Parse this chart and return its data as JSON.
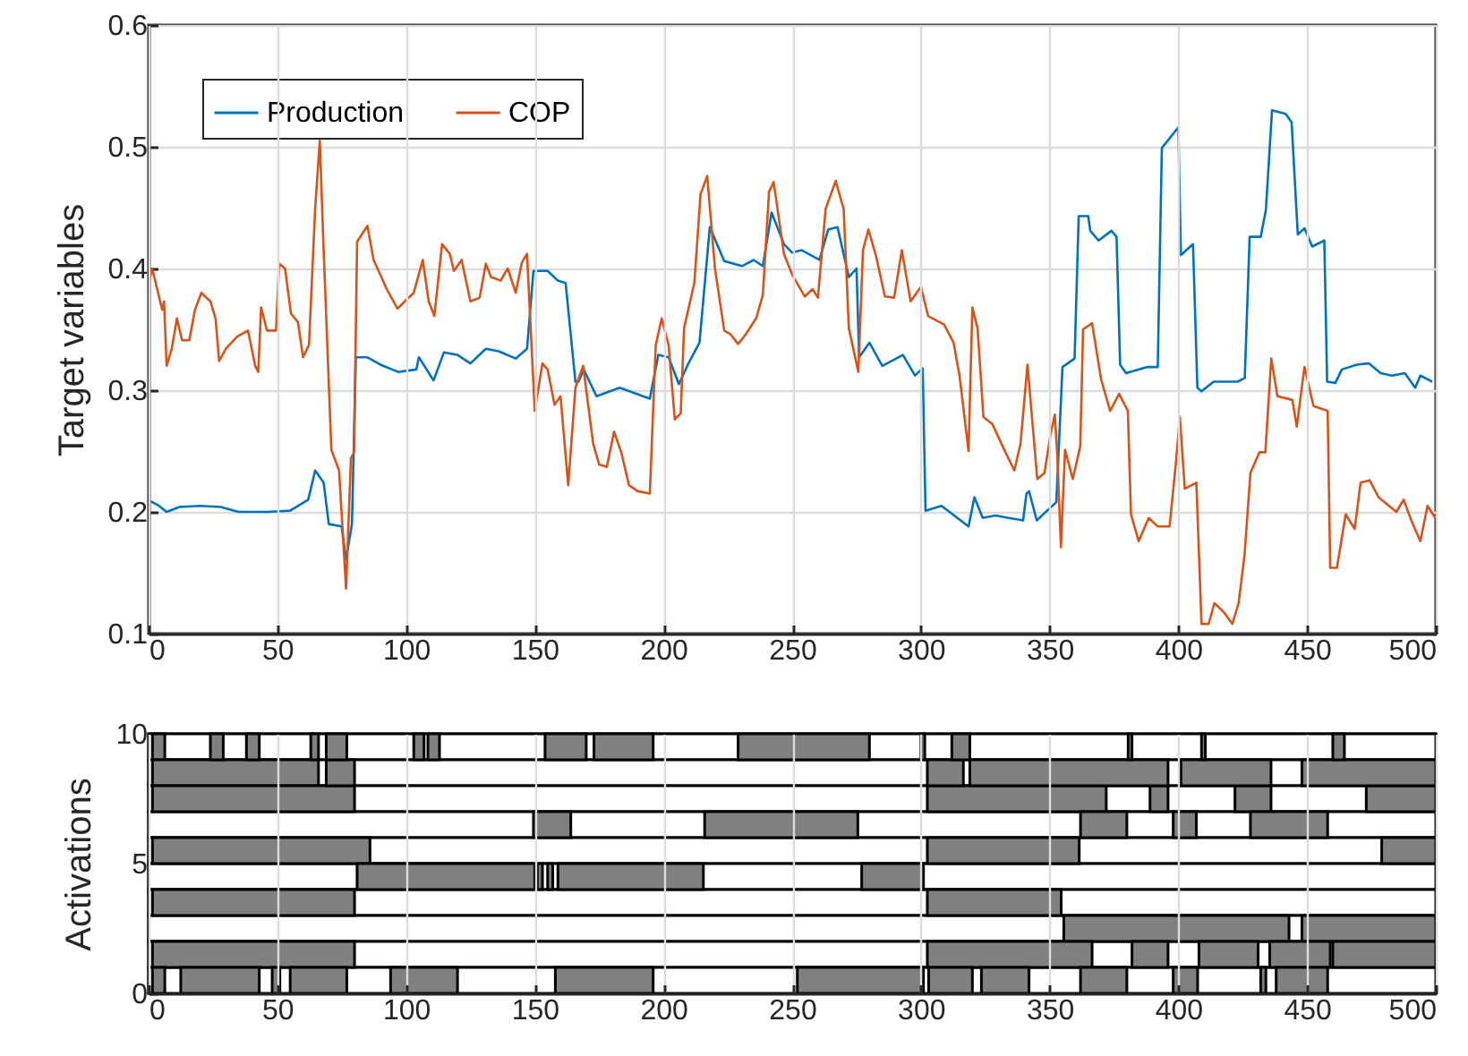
{
  "chart_data": [
    {
      "type": "line",
      "ylabel": "Target variables",
      "xlim": [
        0,
        500
      ],
      "xticks": [
        0,
        50,
        100,
        150,
        200,
        250,
        300,
        350,
        400,
        450,
        500
      ],
      "ylim": [
        0.1,
        0.6
      ],
      "yticks": [
        0.1,
        0.2,
        0.3,
        0.4,
        0.5,
        0.6
      ],
      "grid": true,
      "legend": "top left",
      "series": [
        {
          "name": "Production",
          "color": "#0072bd",
          "x": [
            0.7,
            4,
            7,
            12,
            20,
            28,
            35,
            42,
            46,
            55,
            62,
            64.7,
            68,
            70,
            75,
            76.7,
            79,
            80.5,
            85,
            90,
            97,
            104,
            105,
            110.7,
            114.7,
            120,
            125,
            131,
            136,
            142.6,
            147,
            149.5,
            155,
            159,
            162,
            165.8,
            167,
            169,
            174,
            183,
            194.7,
            198,
            202,
            206,
            209.7,
            214,
            218,
            223.6,
            230.5,
            235,
            238.6,
            242,
            246.8,
            250,
            253.7,
            260.6,
            264,
            267.6,
            272,
            275,
            276,
            280,
            285,
            293,
            297.7,
            300.7,
            301.8,
            308,
            318.5,
            320.8,
            324,
            329,
            334,
            339.7,
            341,
            342,
            345,
            352.6,
            355,
            359.7,
            361.3,
            365,
            365.8,
            369,
            374,
            376,
            377.4,
            379.7,
            387.8,
            392,
            393.6,
            400,
            401,
            405.7,
            407.4,
            409,
            413.7,
            423,
            425.8,
            427.7,
            432,
            434,
            436.4,
            441.7,
            444,
            446.4,
            449,
            452,
            456.7,
            457.8,
            461,
            463.5,
            469.3,
            474,
            478.6,
            483,
            488,
            492,
            494,
            498.6
          ],
          "values": [
            0.209,
            0.205,
            0.2,
            0.204,
            0.205,
            0.204,
            0.2,
            0.2,
            0.2,
            0.201,
            0.21,
            0.234,
            0.224,
            0.19,
            0.188,
            0.161,
            0.19,
            0.327,
            0.327,
            0.321,
            0.315,
            0.317,
            0.327,
            0.308,
            0.331,
            0.329,
            0.322,
            0.334,
            0.332,
            0.326,
            0.334,
            0.398,
            0.398,
            0.39,
            0.388,
            0.307,
            0.307,
            0.317,
            0.295,
            0.302,
            0.293,
            0.329,
            0.327,
            0.305,
            0.322,
            0.339,
            0.434,
            0.406,
            0.402,
            0.407,
            0.402,
            0.446,
            0.42,
            0.413,
            0.415,
            0.407,
            0.432,
            0.434,
            0.393,
            0.4,
            0.327,
            0.339,
            0.32,
            0.329,
            0.312,
            0.318,
            0.201,
            0.205,
            0.188,
            0.212,
            0.195,
            0.197,
            0.195,
            0.193,
            0.215,
            0.217,
            0.193,
            0.208,
            0.319,
            0.326,
            0.443,
            0.443,
            0.431,
            0.423,
            0.431,
            0.426,
            0.321,
            0.314,
            0.319,
            0.319,
            0.499,
            0.516,
            0.411,
            0.42,
            0.302,
            0.299,
            0.307,
            0.307,
            0.31,
            0.426,
            0.426,
            0.448,
            0.53,
            0.527,
            0.52,
            0.428,
            0.433,
            0.418,
            0.423,
            0.307,
            0.306,
            0.317,
            0.321,
            0.322,
            0.314,
            0.312,
            0.314,
            0.302,
            0.312,
            0.307
          ]
        },
        {
          "name": "COP",
          "color": "#d95319",
          "x": [
            0,
            1.4,
            5.3,
            6,
            7,
            9,
            11,
            13,
            15.8,
            18,
            20.5,
            24,
            26,
            27.4,
            30,
            34.4,
            38.6,
            41.4,
            42.6,
            43.7,
            46,
            49.5,
            50.7,
            53,
            55.3,
            58,
            60,
            62.3,
            64.7,
            66.5,
            68,
            71,
            74,
            76.7,
            78.6,
            79.8,
            81,
            85,
            87.4,
            90,
            92.5,
            96.7,
            99.5,
            103,
            106.5,
            108.8,
            111,
            114,
            117,
            118.6,
            121.6,
            125,
            128.6,
            131,
            133,
            136.7,
            139.5,
            142.6,
            145,
            147,
            150,
            153,
            155,
            157.7,
            160,
            163,
            165.8,
            168.8,
            172.7,
            175,
            178,
            180.8,
            183.6,
            186.6,
            190,
            194.7,
            197,
            199.3,
            202,
            204.4,
            206.7,
            208,
            212,
            214.4,
            217,
            220,
            223.6,
            226,
            229,
            232,
            236,
            238.6,
            241,
            242.8,
            246.8,
            250,
            254.9,
            257.9,
            260,
            263,
            266.9,
            270,
            272,
            275.7,
            277.5,
            279.6,
            282.6,
            286,
            289.6,
            292.6,
            296,
            300,
            302.8,
            309,
            312.7,
            315,
            318.5,
            320,
            322,
            324.3,
            327.8,
            332.4,
            336.3,
            338.7,
            341.4,
            345.2,
            348,
            350.3,
            352,
            353,
            354.4,
            356,
            359,
            361.9,
            363,
            366.5,
            370,
            373.5,
            377,
            380.4,
            381.6,
            384.6,
            388.5,
            392,
            396.6,
            399,
            400.6,
            402.5,
            407,
            409,
            411.8,
            414,
            417.5,
            421,
            423.4,
            425.7,
            428,
            431.5,
            433.8,
            436.1,
            438.5,
            444.3,
            446,
            449,
            452.5,
            458,
            459,
            461.6,
            465,
            468.5,
            470.8,
            474.3,
            477.8,
            484.7,
            487.5,
            490.5,
            494,
            496.8,
            499.8
          ],
          "values": [
            0.388,
            0.4,
            0.366,
            0.373,
            0.32,
            0.334,
            0.359,
            0.341,
            0.341,
            0.366,
            0.38,
            0.373,
            0.359,
            0.324,
            0.334,
            0.344,
            0.349,
            0.32,
            0.315,
            0.368,
            0.349,
            0.349,
            0.404,
            0.4,
            0.363,
            0.356,
            0.327,
            0.337,
            0.449,
            0.505,
            0.415,
            0.251,
            0.234,
            0.137,
            0.244,
            0.249,
            0.422,
            0.435,
            0.407,
            0.395,
            0.383,
            0.367,
            0.373,
            0.38,
            0.407,
            0.373,
            0.361,
            0.42,
            0.412,
            0.398,
            0.407,
            0.373,
            0.376,
            0.404,
            0.393,
            0.39,
            0.4,
            0.38,
            0.405,
            0.412,
            0.283,
            0.322,
            0.317,
            0.288,
            0.295,
            0.222,
            0.302,
            0.32,
            0.256,
            0.239,
            0.237,
            0.266,
            0.249,
            0.222,
            0.217,
            0.215,
            0.337,
            0.359,
            0.337,
            0.276,
            0.281,
            0.351,
            0.388,
            0.461,
            0.476,
            0.4,
            0.349,
            0.346,
            0.338,
            0.346,
            0.359,
            0.378,
            0.463,
            0.471,
            0.412,
            0.395,
            0.377,
            0.383,
            0.376,
            0.449,
            0.472,
            0.449,
            0.351,
            0.315,
            0.415,
            0.432,
            0.41,
            0.377,
            0.376,
            0.415,
            0.373,
            0.385,
            0.361,
            0.354,
            0.339,
            0.312,
            0.25,
            0.368,
            0.351,
            0.278,
            0.272,
            0.251,
            0.234,
            0.256,
            0.321,
            0.227,
            0.232,
            0.263,
            0.28,
            0.246,
            0.171,
            0.251,
            0.227,
            0.254,
            0.35,
            0.355,
            0.309,
            0.283,
            0.297,
            0.283,
            0.198,
            0.176,
            0.195,
            0.188,
            0.188,
            0.239,
            0.278,
            0.219,
            0.224,
            0.108,
            0.108,
            0.125,
            0.118,
            0.108,
            0.125,
            0.164,
            0.232,
            0.249,
            0.249,
            0.326,
            0.295,
            0.292,
            0.27,
            0.319,
            0.287,
            0.283,
            0.154,
            0.154,
            0.198,
            0.186,
            0.224,
            0.226,
            0.212,
            0.2,
            0.21,
            0.193,
            0.176,
            0.205,
            0.195
          ]
        }
      ]
    },
    {
      "type": "bar",
      "orientation": "horizontal",
      "ylabel": "Activations",
      "x": [
        9.5,
        8.5,
        7.5,
        6.5,
        5.5,
        4.5,
        3.5,
        2.5,
        1.5,
        0.5
      ],
      "xlim": [
        0,
        500
      ],
      "xticks": [
        0,
        50,
        100,
        150,
        200,
        250,
        300,
        350,
        400,
        450,
        500
      ],
      "ylim": [
        0,
        10
      ],
      "yticks": [
        0,
        5,
        10
      ],
      "grid": "x",
      "series": [
        {
          "color": "#808080",
          "base": [
            1.5,
            1.5,
            1.5,
            149.5,
            1.5,
            81,
            1.5,
            355.5,
            1.5,
            1.5
          ],
          "values": [
            4.8,
            64.5,
            78.5,
            14.5,
            84.5,
            69,
            78.5,
            87.5,
            78.5,
            4.8
          ]
        },
        {
          "color": "#808080",
          "base": [
            24,
            69,
            302.5,
            216,
            302.5,
            151,
            302.5,
            448,
            302.5,
            12.5
          ],
          "values": [
            5,
            11,
            69.5,
            59.5,
            59,
            2,
            52,
            52,
            64,
            30.5
          ]
        },
        {
          "color": "#808080",
          "base": [
            38,
            302.5,
            389,
            362,
            479,
            155,
            null,
            null,
            382,
            48
          ],
          "values": [
            5,
            14,
            7,
            18,
            21,
            2,
            null,
            null,
            14,
            3
          ]
        },
        {
          "color": "#808080",
          "base": [
            63,
            319,
            422,
            398,
            null,
            159,
            null,
            null,
            408,
            55
          ],
          "values": [
            3,
            77,
            14,
            9,
            null,
            56.5,
            null,
            null,
            23,
            22
          ]
        },
        {
          "color": "#808080",
          "base": [
            69,
            401,
            473,
            428,
            null,
            277,
            null,
            null,
            435.5,
            94
          ],
          "values": [
            8,
            35,
            27,
            30,
            null,
            24,
            null,
            null,
            23.5,
            26
          ]
        },
        {
          "color": "#808080",
          "base": [
            103,
            448,
            null,
            null,
            null,
            null,
            null,
            null,
            460,
            158
          ],
          "values": [
            4,
            52,
            null,
            null,
            null,
            null,
            null,
            null,
            40,
            38
          ]
        },
        {
          "color": "#808080",
          "base": [
            108.5,
            null,
            null,
            null,
            null,
            null,
            null,
            null,
            null,
            252
          ],
          "values": [
            4.5,
            null,
            null,
            null,
            null,
            null,
            null,
            null,
            null,
            49
          ]
        },
        {
          "color": "#808080",
          "base": [
            154,
            null,
            null,
            null,
            null,
            null,
            null,
            null,
            null,
            303
          ],
          "values": [
            16,
            null,
            null,
            null,
            null,
            null,
            null,
            null,
            null,
            17
          ]
        },
        {
          "color": "#808080",
          "base": [
            173,
            null,
            null,
            null,
            null,
            null,
            null,
            null,
            null,
            323.5
          ],
          "values": [
            23,
            null,
            null,
            null,
            null,
            null,
            null,
            null,
            null,
            18.5
          ]
        },
        {
          "color": "#808080",
          "base": [
            229,
            null,
            null,
            null,
            null,
            null,
            null,
            null,
            null,
            362
          ],
          "values": [
            51,
            null,
            null,
            null,
            null,
            null,
            null,
            null,
            null,
            18
          ]
        },
        {
          "color": "#808080",
          "base": [
            300,
            null,
            null,
            null,
            null,
            null,
            null,
            null,
            null,
            398
          ],
          "values": [
            1.5,
            null,
            null,
            null,
            null,
            null,
            null,
            null,
            null,
            9.5
          ]
        },
        {
          "color": "#808080",
          "base": [
            312,
            null,
            null,
            null,
            null,
            null,
            null,
            null,
            null,
            432
          ],
          "values": [
            7,
            null,
            null,
            null,
            null,
            null,
            null,
            null,
            null,
            2
          ]
        },
        {
          "color": "#808080",
          "base": [
            380.5,
            null,
            null,
            null,
            null,
            null,
            null,
            null,
            null,
            438
          ],
          "values": [
            1.5,
            null,
            null,
            null,
            null,
            null,
            null,
            null,
            null,
            20
          ]
        },
        {
          "color": "#808080",
          "base": [
            409,
            null,
            null,
            null,
            null,
            null,
            null,
            null,
            null,
            null
          ],
          "values": [
            1.5,
            null,
            null,
            null,
            null,
            null,
            null,
            null,
            null,
            null
          ]
        },
        {
          "color": "#808080",
          "base": [
            460,
            null,
            null,
            null,
            null,
            null,
            null,
            null,
            null,
            null
          ],
          "values": [
            4.5,
            null,
            null,
            null,
            null,
            null,
            null,
            null,
            null,
            null
          ]
        }
      ]
    }
  ]
}
